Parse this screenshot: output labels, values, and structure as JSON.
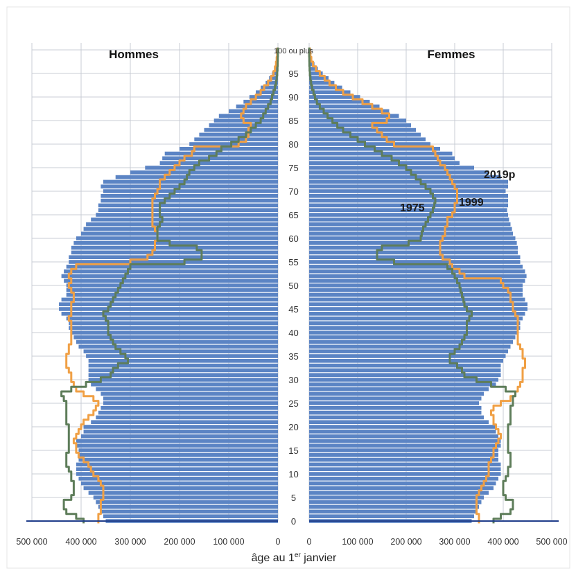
{
  "chart_data": {
    "type": "bar",
    "orientation": "horizontal-population-pyramid",
    "left_panel_title": "Hommes",
    "right_panel_title": "Femmes",
    "xlabel": "âge au 1er janvier",
    "xlabel_parts": {
      "pre": "âge au 1",
      "sup": "er",
      "post": " janvier"
    },
    "x_tick_labels_left": [
      "500 000",
      "400 000",
      "300 000",
      "200 000",
      "100 000",
      "0"
    ],
    "x_tick_values_left": [
      500000,
      400000,
      300000,
      200000,
      100000,
      0
    ],
    "x_tick_labels_right": [
      "0",
      "100 000",
      "200 000",
      "300 000",
      "400 000",
      "500 000"
    ],
    "x_tick_values_right": [
      0,
      100000,
      200000,
      300000,
      400000,
      500000
    ],
    "xlim": [
      0,
      500000
    ],
    "ylim": [
      0,
      100
    ],
    "y_tick_labels": [
      "0",
      "5",
      "10",
      "15",
      "20",
      "25",
      "30",
      "35",
      "40",
      "45",
      "50",
      "55",
      "60",
      "65",
      "70",
      "75",
      "80",
      "85",
      "90",
      "95",
      "100 ou plus"
    ],
    "y_tick_values": [
      0,
      5,
      10,
      15,
      20,
      25,
      30,
      35,
      40,
      45,
      50,
      55,
      60,
      65,
      70,
      75,
      80,
      85,
      90,
      95,
      100
    ],
    "grid": true,
    "ages": [
      0,
      1,
      2,
      3,
      4,
      5,
      6,
      7,
      8,
      9,
      10,
      11,
      12,
      13,
      14,
      15,
      16,
      17,
      18,
      19,
      20,
      21,
      22,
      23,
      24,
      25,
      26,
      27,
      28,
      29,
      30,
      31,
      32,
      33,
      34,
      35,
      36,
      37,
      38,
      39,
      40,
      41,
      42,
      43,
      44,
      45,
      46,
      47,
      48,
      49,
      50,
      51,
      52,
      53,
      54,
      55,
      56,
      57,
      58,
      59,
      60,
      61,
      62,
      63,
      64,
      65,
      66,
      67,
      68,
      69,
      70,
      71,
      72,
      73,
      74,
      75,
      76,
      77,
      78,
      79,
      80,
      81,
      82,
      83,
      84,
      85,
      86,
      87,
      88,
      89,
      90,
      91,
      92,
      93,
      94,
      95,
      96,
      97,
      98,
      99,
      100
    ],
    "series": [
      {
        "name": "2019p",
        "kind": "bars",
        "color": "#5b84c4",
        "men": [
          350000,
          355000,
          360000,
          365000,
          370000,
          375000,
          385000,
          395000,
          400000,
          405000,
          410000,
          410000,
          410000,
          405000,
          405000,
          405000,
          410000,
          410000,
          400000,
          395000,
          395000,
          380000,
          370000,
          365000,
          360000,
          355000,
          355000,
          360000,
          370000,
          380000,
          385000,
          385000,
          385000,
          385000,
          385000,
          390000,
          395000,
          405000,
          410000,
          415000,
          420000,
          425000,
          425000,
          430000,
          440000,
          445000,
          445000,
          440000,
          430000,
          430000,
          430000,
          435000,
          440000,
          435000,
          430000,
          425000,
          425000,
          420000,
          420000,
          415000,
          410000,
          400000,
          395000,
          390000,
          380000,
          370000,
          365000,
          365000,
          360000,
          360000,
          355000,
          360000,
          355000,
          330000,
          300000,
          270000,
          240000,
          235000,
          230000,
          200000,
          180000,
          170000,
          160000,
          150000,
          140000,
          130000,
          120000,
          100000,
          85000,
          70000,
          58000,
          45000,
          35000,
          25000,
          18000,
          12000,
          8000,
          5000,
          3000,
          2000,
          1500
        ],
        "women": [
          335000,
          340000,
          345000,
          350000,
          355000,
          360000,
          370000,
          380000,
          385000,
          390000,
          395000,
          395000,
          395000,
          390000,
          390000,
          390000,
          395000,
          395000,
          390000,
          385000,
          385000,
          370000,
          360000,
          355000,
          355000,
          350000,
          355000,
          360000,
          370000,
          385000,
          390000,
          395000,
          395000,
          395000,
          400000,
          405000,
          410000,
          415000,
          420000,
          425000,
          430000,
          435000,
          435000,
          440000,
          445000,
          450000,
          450000,
          445000,
          440000,
          440000,
          440000,
          445000,
          448000,
          445000,
          440000,
          435000,
          435000,
          430000,
          430000,
          428000,
          425000,
          420000,
          418000,
          415000,
          412000,
          410000,
          408000,
          410000,
          410000,
          410000,
          405000,
          410000,
          410000,
          395000,
          370000,
          340000,
          310000,
          300000,
          295000,
          270000,
          250000,
          240000,
          230000,
          220000,
          210000,
          200000,
          185000,
          165000,
          145000,
          125000,
          105000,
          85000,
          68000,
          52000,
          40000,
          28000,
          18000,
          11000,
          6000,
          3500,
          2000
        ]
      },
      {
        "name": "1999",
        "kind": "line",
        "color": "#f0a045",
        "men": [
          365000,
          365000,
          360000,
          360000,
          360000,
          355000,
          355000,
          355000,
          360000,
          365000,
          375000,
          380000,
          385000,
          395000,
          405000,
          410000,
          410000,
          415000,
          410000,
          405000,
          400000,
          395000,
          385000,
          375000,
          370000,
          365000,
          375000,
          395000,
          410000,
          415000,
          420000,
          420000,
          425000,
          430000,
          430000,
          430000,
          425000,
          425000,
          420000,
          420000,
          420000,
          420000,
          420000,
          425000,
          420000,
          420000,
          420000,
          415000,
          415000,
          420000,
          425000,
          420000,
          425000,
          420000,
          410000,
          300000,
          265000,
          255000,
          250000,
          250000,
          245000,
          245000,
          250000,
          255000,
          255000,
          255000,
          255000,
          255000,
          255000,
          250000,
          245000,
          240000,
          240000,
          230000,
          220000,
          210000,
          200000,
          190000,
          175000,
          170000,
          80000,
          65000,
          60000,
          60000,
          55000,
          70000,
          75000,
          70000,
          65000,
          55000,
          45000,
          35000,
          28000,
          20000,
          14000,
          9000,
          6000,
          4000,
          2500,
          1500,
          1000
        ],
        "women": [
          350000,
          350000,
          345000,
          345000,
          345000,
          345000,
          350000,
          355000,
          360000,
          365000,
          370000,
          370000,
          370000,
          375000,
          380000,
          380000,
          385000,
          390000,
          395000,
          390000,
          385000,
          380000,
          380000,
          375000,
          380000,
          395000,
          415000,
          425000,
          430000,
          435000,
          440000,
          440000,
          440000,
          445000,
          445000,
          440000,
          440000,
          435000,
          430000,
          430000,
          430000,
          430000,
          430000,
          430000,
          425000,
          420000,
          420000,
          415000,
          415000,
          410000,
          400000,
          395000,
          320000,
          310000,
          295000,
          290000,
          275000,
          270000,
          270000,
          270000,
          275000,
          280000,
          280000,
          285000,
          285000,
          295000,
          300000,
          300000,
          305000,
          305000,
          305000,
          300000,
          295000,
          290000,
          285000,
          280000,
          270000,
          265000,
          260000,
          255000,
          175000,
          160000,
          150000,
          140000,
          130000,
          160000,
          165000,
          150000,
          130000,
          110000,
          90000,
          70000,
          55000,
          42000,
          32000,
          22000,
          14000,
          8000,
          4500,
          2500,
          1500
        ]
      },
      {
        "name": "1975",
        "kind": "line",
        "color": "#5e7d5a",
        "men": [
          395000,
          410000,
          430000,
          435000,
          435000,
          420000,
          415000,
          415000,
          415000,
          420000,
          420000,
          425000,
          430000,
          430000,
          430000,
          425000,
          425000,
          425000,
          425000,
          425000,
          425000,
          430000,
          430000,
          430000,
          430000,
          430000,
          435000,
          440000,
          420000,
          390000,
          360000,
          340000,
          335000,
          325000,
          305000,
          310000,
          320000,
          330000,
          335000,
          340000,
          345000,
          345000,
          345000,
          350000,
          355000,
          345000,
          340000,
          335000,
          330000,
          325000,
          320000,
          315000,
          310000,
          305000,
          300000,
          190000,
          155000,
          155000,
          165000,
          220000,
          245000,
          245000,
          245000,
          240000,
          235000,
          240000,
          240000,
          240000,
          230000,
          220000,
          210000,
          200000,
          190000,
          185000,
          180000,
          170000,
          160000,
          140000,
          125000,
          115000,
          95000,
          80000,
          65000,
          55000,
          45000,
          35000,
          30000,
          25000,
          20000,
          15000,
          12000,
          9000,
          6000,
          4000,
          2500,
          1500,
          1000,
          600,
          400,
          200,
          100
        ],
        "women": [
          380000,
          395000,
          415000,
          420000,
          420000,
          405000,
          400000,
          400000,
          400000,
          405000,
          410000,
          410000,
          415000,
          415000,
          415000,
          410000,
          410000,
          410000,
          410000,
          410000,
          410000,
          415000,
          415000,
          415000,
          415000,
          420000,
          420000,
          425000,
          405000,
          375000,
          345000,
          320000,
          315000,
          305000,
          290000,
          290000,
          300000,
          310000,
          315000,
          320000,
          325000,
          325000,
          325000,
          330000,
          335000,
          325000,
          320000,
          318000,
          315000,
          312000,
          310000,
          305000,
          300000,
          295000,
          285000,
          175000,
          140000,
          140000,
          150000,
          205000,
          230000,
          232000,
          235000,
          240000,
          245000,
          250000,
          255000,
          258000,
          260000,
          255000,
          250000,
          240000,
          230000,
          220000,
          210000,
          200000,
          185000,
          170000,
          150000,
          135000,
          115000,
          100000,
          85000,
          70000,
          58000,
          48000,
          38000,
          30000,
          22000,
          16000,
          12000,
          9000,
          6000,
          4000,
          2500,
          1500,
          1000,
          600,
          400,
          200,
          100
        ]
      }
    ]
  },
  "labels": {
    "l2019": "2019p",
    "l1999": "1999",
    "l1975": "1975"
  },
  "colors": {
    "bars": "#5b84c4",
    "line1999": "#f0a045",
    "line1975": "#5e7d5a",
    "axis": "#1f3d8a",
    "grid": "#c8ccd4"
  }
}
